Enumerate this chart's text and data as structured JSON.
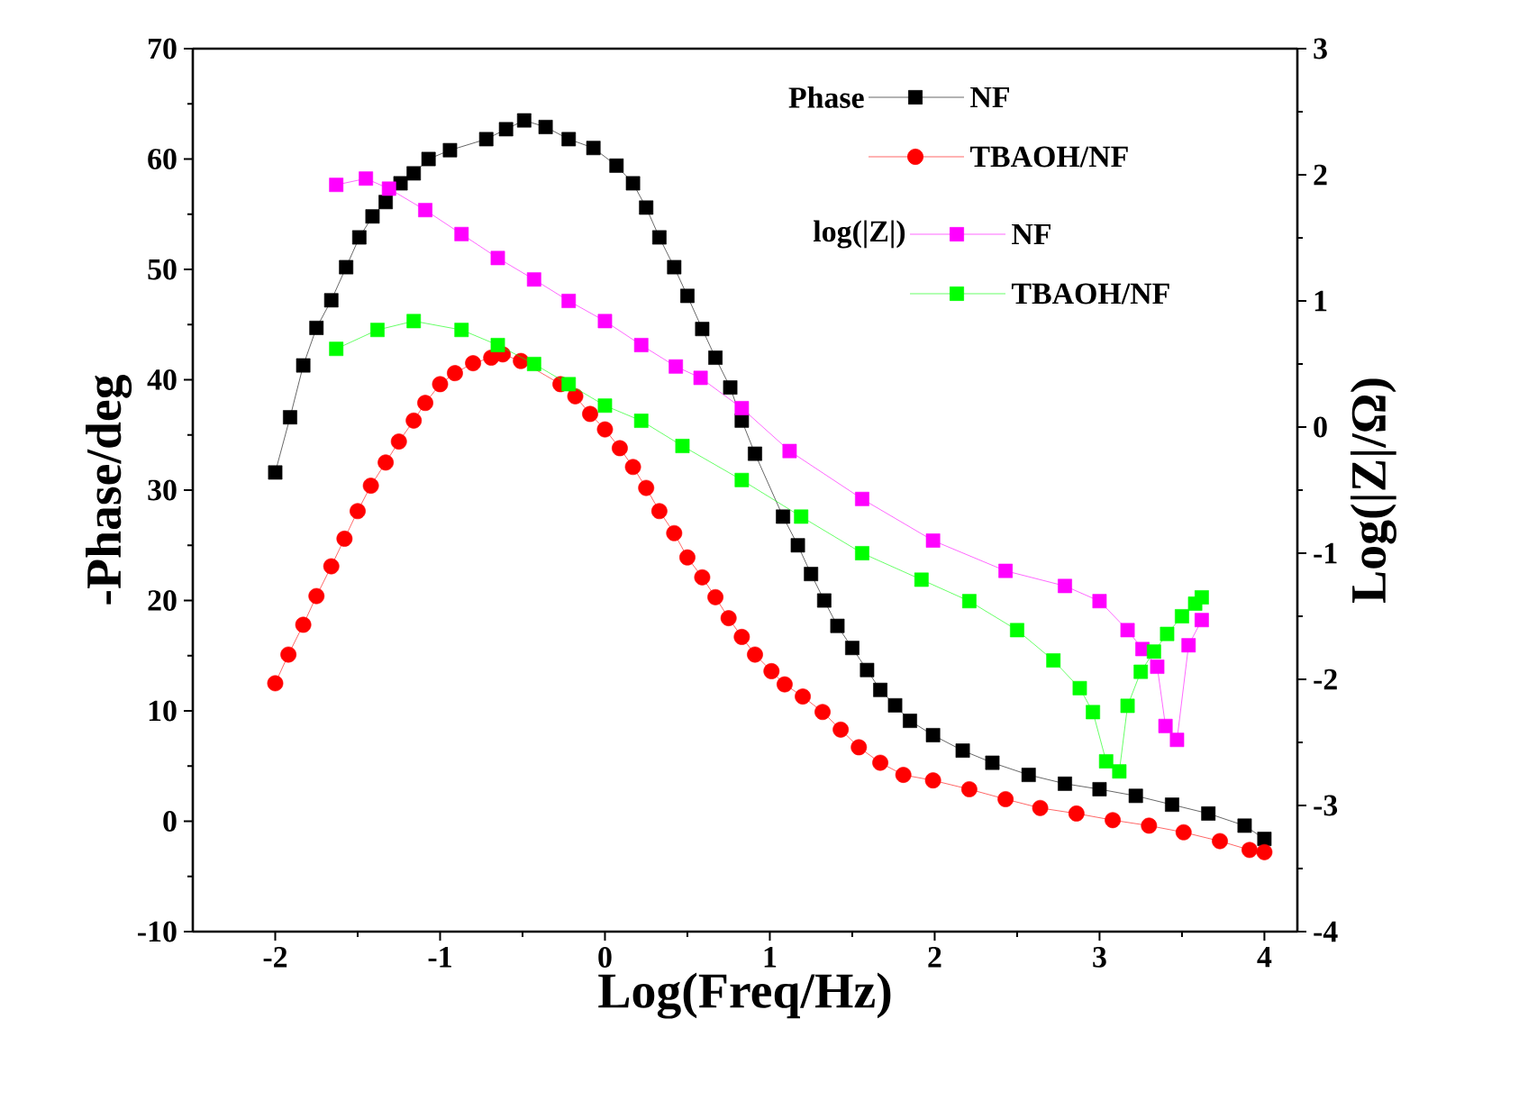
{
  "chart_data": {
    "type": "line",
    "xlabel": "Log(Freq/Hz)",
    "ylabel": "-Phase/deg",
    "y2label": "Log(|Z|/Ω)",
    "xlim": [
      -2.5,
      4.2
    ],
    "xticks": [
      -2,
      -1,
      0,
      1,
      2,
      3,
      4
    ],
    "ylim": [
      -10,
      70
    ],
    "yticks": [
      -10,
      0,
      10,
      20,
      30,
      40,
      50,
      60,
      70
    ],
    "y2lim": [
      -4,
      3
    ],
    "y2ticks": [
      -4,
      -3,
      -2,
      -1,
      0,
      1,
      2,
      3
    ],
    "legend": "top right",
    "annotations": [
      "Phase",
      "log(|Z|)"
    ],
    "line_style": "solid",
    "series": [
      {
        "name": "NF",
        "color": "#000000",
        "marker": "square",
        "x": [
          -2.0,
          -1.91,
          -1.83,
          -1.75,
          -1.66,
          -1.57,
          -1.49,
          -1.41,
          -1.33,
          -1.24,
          -1.16,
          -1.07,
          -0.94,
          -0.72,
          -0.6,
          -0.49,
          -0.36,
          -0.22,
          -0.07,
          0.07,
          0.17,
          0.25,
          0.33,
          0.42,
          0.5,
          0.59,
          0.67,
          0.76,
          0.83,
          0.91,
          1.08,
          1.17,
          1.25,
          1.33,
          1.41,
          1.5,
          1.59,
          1.67,
          1.76,
          1.85,
          1.99,
          2.17,
          2.35,
          2.57,
          2.79,
          3.0,
          3.22,
          3.44,
          3.66,
          3.88,
          4.0
        ],
        "values": [
          31.6,
          36.6,
          41.3,
          44.7,
          47.2,
          50.2,
          52.9,
          54.8,
          56.1,
          57.8,
          58.7,
          60.0,
          60.8,
          61.8,
          62.7,
          63.5,
          62.9,
          61.8,
          61.0,
          59.4,
          57.8,
          55.6,
          52.9,
          50.2,
          47.6,
          44.6,
          42.0,
          39.3,
          36.3,
          33.3,
          27.6,
          25.0,
          22.4,
          20.0,
          17.7,
          15.7,
          13.7,
          11.9,
          10.5,
          9.1,
          7.8,
          6.4,
          5.3,
          4.2,
          3.4,
          2.9,
          2.3,
          1.5,
          0.7,
          -0.4,
          -1.6
        ]
      },
      {
        "name": "TBAOH/NF",
        "color": "#ff0000",
        "marker": "circle",
        "x": [
          -2.0,
          -1.92,
          -1.83,
          -1.75,
          -1.66,
          -1.58,
          -1.5,
          -1.42,
          -1.33,
          -1.25,
          -1.16,
          -1.09,
          -1.0,
          -0.91,
          -0.8,
          -0.69,
          -0.62,
          -0.51,
          -0.4,
          -0.27,
          -0.18,
          -0.09,
          0.0,
          0.09,
          0.17,
          0.25,
          0.33,
          0.42,
          0.5,
          0.59,
          0.67,
          0.75,
          0.83,
          0.91,
          1.01,
          1.09,
          1.2,
          1.32,
          1.43,
          1.54,
          1.67,
          1.81,
          1.99,
          2.21,
          2.43,
          2.64,
          2.86,
          3.08,
          3.3,
          3.51,
          3.73,
          3.91,
          4.0
        ],
        "values": [
          12.5,
          15.1,
          17.8,
          20.4,
          23.1,
          25.6,
          28.1,
          30.4,
          32.5,
          34.4,
          36.3,
          37.9,
          39.6,
          40.6,
          41.5,
          42.0,
          42.3,
          41.7,
          null,
          39.6,
          38.5,
          36.9,
          35.5,
          33.8,
          32.1,
          30.2,
          28.1,
          26.1,
          23.9,
          22.1,
          20.3,
          18.4,
          16.7,
          15.1,
          13.6,
          12.4,
          11.3,
          9.9,
          8.3,
          6.7,
          5.3,
          4.2,
          3.7,
          2.9,
          2.0,
          1.2,
          0.7,
          0.1,
          -0.4,
          -1.0,
          -1.8,
          -2.6,
          -2.8
        ]
      },
      {
        "name": "NF",
        "color": "#ff00ff",
        "marker": "square",
        "axis": "y2",
        "x": [
          -1.63,
          -1.45,
          -1.31,
          -1.09,
          -0.87,
          -0.65,
          -0.43,
          -0.22,
          0.0,
          0.22,
          0.43,
          0.58,
          0.83,
          1.12,
          1.56,
          1.99,
          2.43,
          2.79,
          3.0,
          3.17,
          3.26,
          3.35,
          3.4,
          3.47,
          3.54,
          3.62
        ],
        "values": [
          1.92,
          1.97,
          1.89,
          1.72,
          1.53,
          1.34,
          1.17,
          1.0,
          0.84,
          0.65,
          0.48,
          0.39,
          0.15,
          -0.19,
          -0.57,
          -0.9,
          -1.14,
          -1.26,
          -1.38,
          -1.61,
          -1.76,
          -1.9,
          -2.37,
          -2.48,
          -1.73,
          -1.53
        ]
      },
      {
        "name": "TBAOH/NF",
        "color": "#00ff00",
        "marker": "square",
        "axis": "y2",
        "x": [
          -1.63,
          -1.38,
          -1.16,
          -0.87,
          -0.65,
          -0.43,
          -0.22,
          0.0,
          0.22,
          0.47,
          0.83,
          1.19,
          1.56,
          1.92,
          2.21,
          2.5,
          2.72,
          2.88,
          2.96,
          3.04,
          3.12,
          3.17,
          3.25,
          3.33,
          3.41,
          3.5,
          3.58,
          3.62
        ],
        "values": [
          0.62,
          0.77,
          0.84,
          0.77,
          0.65,
          0.5,
          0.34,
          0.17,
          0.05,
          -0.15,
          -0.42,
          -0.71,
          -1.0,
          -1.21,
          -1.38,
          -1.61,
          -1.85,
          -2.07,
          -2.26,
          -2.65,
          -2.73,
          -2.21,
          -1.94,
          -1.78,
          -1.64,
          -1.5,
          -1.4,
          -1.35
        ]
      }
    ]
  }
}
